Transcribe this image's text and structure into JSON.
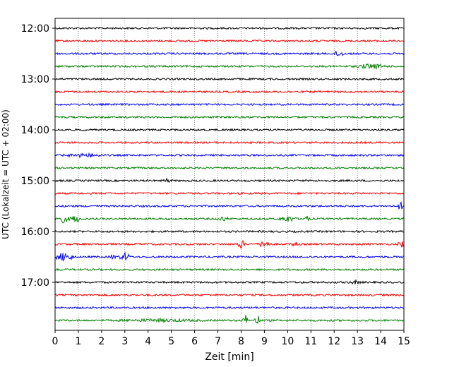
{
  "chart_data": {
    "type": "line",
    "xlabel": "Zeit  [min]",
    "ylabel": "UTC (Lokalzeit = UTC + 02:00)",
    "xlim": [
      0,
      15
    ],
    "x_ticks": [
      "0",
      "1",
      "2",
      "3",
      "4",
      "5",
      "6",
      "7",
      "8",
      "9",
      "10",
      "11",
      "12",
      "13",
      "14",
      "15"
    ],
    "y_tick_labels": [
      "12:00",
      "13:00",
      "14:00",
      "15:00",
      "16:00",
      "17:00"
    ],
    "grid": "vertical dotted",
    "row_minutes": 15,
    "trace_colors": [
      "#000000",
      "#ff0000",
      "#0000ff",
      "#008000"
    ],
    "traces": [
      {
        "start": "12:00",
        "color": "#000000"
      },
      {
        "start": "12:15",
        "color": "#ff0000"
      },
      {
        "start": "12:30",
        "color": "#0000ff"
      },
      {
        "start": "12:45",
        "color": "#008000"
      },
      {
        "start": "13:00",
        "color": "#000000"
      },
      {
        "start": "13:15",
        "color": "#ff0000"
      },
      {
        "start": "13:30",
        "color": "#0000ff"
      },
      {
        "start": "13:45",
        "color": "#008000"
      },
      {
        "start": "14:00",
        "color": "#000000"
      },
      {
        "start": "14:15",
        "color": "#ff0000"
      },
      {
        "start": "14:30",
        "color": "#0000ff"
      },
      {
        "start": "14:45",
        "color": "#008000"
      },
      {
        "start": "15:00",
        "color": "#000000"
      },
      {
        "start": "15:15",
        "color": "#ff0000"
      },
      {
        "start": "15:30",
        "color": "#0000ff"
      },
      {
        "start": "15:45",
        "color": "#008000"
      },
      {
        "start": "16:00",
        "color": "#000000"
      },
      {
        "start": "16:15",
        "color": "#ff0000"
      },
      {
        "start": "16:30",
        "color": "#0000ff"
      },
      {
        "start": "16:45",
        "color": "#008000"
      },
      {
        "start": "17:00",
        "color": "#000000"
      },
      {
        "start": "17:15",
        "color": "#ff0000"
      },
      {
        "start": "17:30",
        "color": "#0000ff"
      },
      {
        "start": "17:45",
        "color": "#008000"
      }
    ]
  }
}
